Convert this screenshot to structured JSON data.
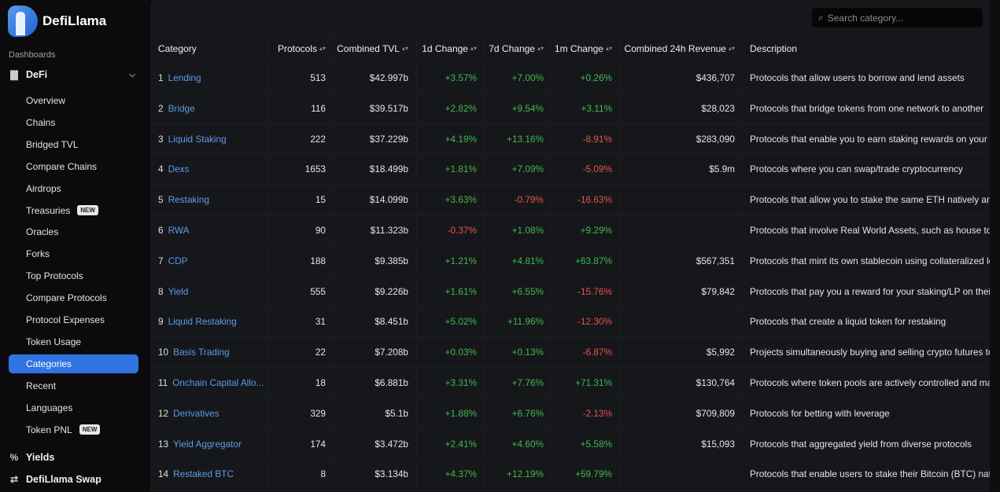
{
  "app": {
    "logo_text": "DefiLlama"
  },
  "sidebar": {
    "section_label": "Dashboards",
    "defi_label": "DeFi",
    "items": [
      {
        "label": "Overview"
      },
      {
        "label": "Chains"
      },
      {
        "label": "Bridged TVL"
      },
      {
        "label": "Compare Chains"
      },
      {
        "label": "Airdrops"
      },
      {
        "label": "Treasuries",
        "badge": "NEW"
      },
      {
        "label": "Oracles"
      },
      {
        "label": "Forks"
      },
      {
        "label": "Top Protocols"
      },
      {
        "label": "Compare Protocols"
      },
      {
        "label": "Protocol Expenses"
      },
      {
        "label": "Token Usage"
      },
      {
        "label": "Categories",
        "active": true
      },
      {
        "label": "Recent"
      },
      {
        "label": "Languages"
      },
      {
        "label": "Token PNL",
        "badge": "NEW"
      }
    ],
    "yields_label": "Yields",
    "swap_label": "DefiLlama Swap"
  },
  "search": {
    "placeholder": "Search category..."
  },
  "table": {
    "headers": [
      "Category",
      "Protocols",
      "Combined TVL",
      "1d Change",
      "7d Change",
      "1m Change",
      "Combined 24h Revenue",
      "Description"
    ],
    "rows": [
      {
        "n": "1",
        "name": "Lending",
        "protocols": "513",
        "tvl": "$42.997b",
        "d1": "+3.57%",
        "d7": "+7.00%",
        "m1": "+0.26%",
        "rev": "$436,707",
        "desc": "Protocols that allow users to borrow and lend assets"
      },
      {
        "n": "2",
        "name": "Bridge",
        "protocols": "116",
        "tvl": "$39.517b",
        "d1": "+2.82%",
        "d7": "+9.54%",
        "m1": "+3.11%",
        "rev": "$28,023",
        "desc": "Protocols that bridge tokens from one network to another"
      },
      {
        "n": "3",
        "name": "Liquid Staking",
        "protocols": "222",
        "tvl": "$37.229b",
        "d1": "+4.19%",
        "d7": "+13.16%",
        "m1": "-8.91%",
        "rev": "$283,090",
        "desc": "Protocols that enable you to earn staking rewards on your to"
      },
      {
        "n": "4",
        "name": "Dexs",
        "protocols": "1653",
        "tvl": "$18.499b",
        "d1": "+1.81%",
        "d7": "+7.09%",
        "m1": "-5.09%",
        "rev": "$5.9m",
        "desc": "Protocols where you can swap/trade cryptocurrency"
      },
      {
        "n": "5",
        "name": "Restaking",
        "protocols": "15",
        "tvl": "$14.099b",
        "d1": "+3.63%",
        "d7": "-0.79%",
        "m1": "-16.63%",
        "rev": "",
        "desc": "Protocols that allow you to stake the same ETH natively and"
      },
      {
        "n": "6",
        "name": "RWA",
        "protocols": "90",
        "tvl": "$11.323b",
        "d1": "-0.37%",
        "d7": "+1.08%",
        "m1": "+9.29%",
        "rev": "",
        "desc": "Protocols that involve Real World Assets, such as house tok"
      },
      {
        "n": "7",
        "name": "CDP",
        "protocols": "188",
        "tvl": "$9.385b",
        "d1": "+1.21%",
        "d7": "+4.81%",
        "m1": "+63.87%",
        "rev": "$567,351",
        "desc": "Protocols that mint its own stablecoin using collateralized le"
      },
      {
        "n": "8",
        "name": "Yield",
        "protocols": "555",
        "tvl": "$9.226b",
        "d1": "+1.61%",
        "d7": "+6.55%",
        "m1": "-15.76%",
        "rev": "$79,842",
        "desc": "Protocols that pay you a reward for your staking/LP on their"
      },
      {
        "n": "9",
        "name": "Liquid Restaking",
        "protocols": "31",
        "tvl": "$8.451b",
        "d1": "+5.02%",
        "d7": "+11.96%",
        "m1": "-12.30%",
        "rev": "",
        "desc": "Protocols that create a liquid token for restaking"
      },
      {
        "n": "10",
        "name": "Basis Trading",
        "protocols": "22",
        "tvl": "$7.208b",
        "d1": "+0.03%",
        "d7": "+0.13%",
        "m1": "-6.87%",
        "rev": "$5,992",
        "desc": "Projects simultaneously buying and selling crypto futures to"
      },
      {
        "n": "11",
        "name": "Onchain Capital Allo...",
        "protocols": "18",
        "tvl": "$6.881b",
        "d1": "+3.31%",
        "d7": "+7.76%",
        "m1": "+71.31%",
        "rev": "$130,764",
        "desc": "Protocols where token pools are actively controlled and ma"
      },
      {
        "n": "12",
        "name": "Derivatives",
        "protocols": "329",
        "tvl": "$5.1b",
        "d1": "+1.88%",
        "d7": "+6.76%",
        "m1": "-2.13%",
        "rev": "$709,809",
        "desc": "Protocols for betting with leverage"
      },
      {
        "n": "13",
        "name": "Yield Aggregator",
        "protocols": "174",
        "tvl": "$3.472b",
        "d1": "+2.41%",
        "d7": "+4.60%",
        "m1": "+5.58%",
        "rev": "$15,093",
        "desc": "Protocols that aggregated yield from diverse protocols"
      },
      {
        "n": "14",
        "name": "Restaked BTC",
        "protocols": "8",
        "tvl": "$3.134b",
        "d1": "+4.37%",
        "d7": "+12.19%",
        "m1": "+59.79%",
        "rev": "",
        "desc": "Protocols that enable users to stake their Bitcoin (BTC) nativ"
      }
    ]
  },
  "colors": {
    "accent": "#2f74e0",
    "positive": "#3fb950",
    "negative": "#e5534b",
    "link": "#5b9bea"
  }
}
